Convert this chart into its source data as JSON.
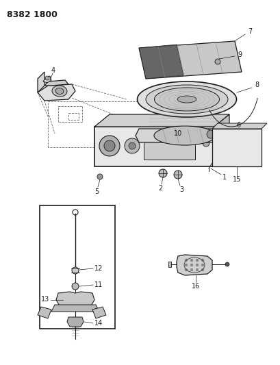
{
  "title": "8382 1800",
  "bg_color": "#ffffff",
  "fig_width": 4.1,
  "fig_height": 5.33,
  "dpi": 100
}
